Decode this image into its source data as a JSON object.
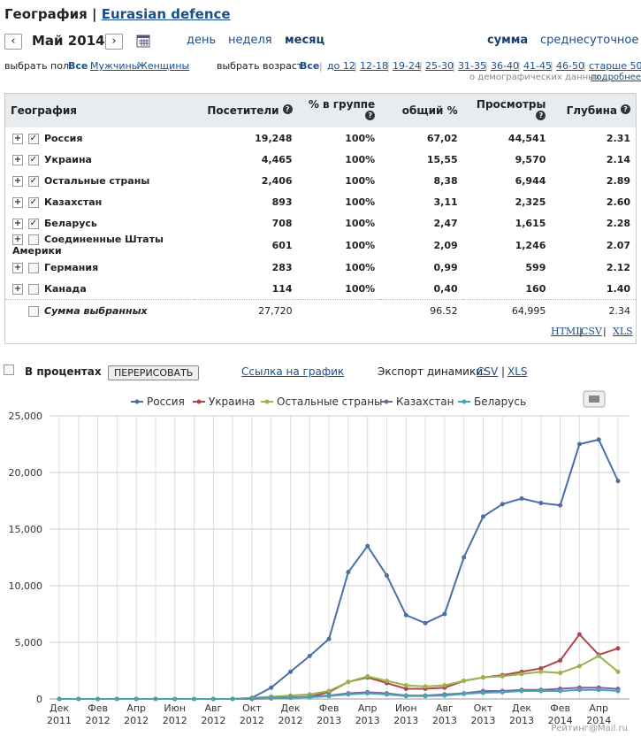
{
  "header": {
    "title": "География",
    "link": "Eurasian defence"
  },
  "nav": {
    "prev": "‹",
    "month": "Май 2014",
    "next": "›",
    "periods": [
      "день",
      "неделя",
      "месяц"
    ],
    "modes": [
      "сумма",
      "среднесуточное"
    ]
  },
  "filters": {
    "gender_label": "выбрать пол:",
    "gender": [
      "Все",
      "Мужчины",
      "Женщины"
    ],
    "age_label": "выбрать возраст:",
    "age": [
      "Все",
      "до 12",
      "12-18",
      "19-24",
      "25-30",
      "31-35",
      "36-40",
      "41-45",
      "46-50",
      "старше 50"
    ],
    "note": "о демографических данных",
    "note_link": "подробнее"
  },
  "table": {
    "columns": [
      "География",
      "Посетители",
      "% в группе",
      "общий %",
      "Просмотры",
      "Глубина"
    ],
    "rows": [
      {
        "checked": true,
        "cells": [
          "Россия",
          "19,248",
          "100%",
          "67,02",
          "44,541",
          "2.31"
        ]
      },
      {
        "checked": true,
        "cells": [
          "Украина",
          "4,465",
          "100%",
          "15,55",
          "9,570",
          "2.14"
        ]
      },
      {
        "checked": true,
        "cells": [
          "Остальные страны",
          "2,406",
          "100%",
          "8,38",
          "6,944",
          "2.89"
        ]
      },
      {
        "checked": true,
        "cells": [
          "Казахстан",
          "893",
          "100%",
          "3,11",
          "2,325",
          "2.60"
        ]
      },
      {
        "checked": true,
        "cells": [
          "Беларусь",
          "708",
          "100%",
          "2,47",
          "1,615",
          "2.28"
        ]
      },
      {
        "checked": false,
        "cells": [
          "Соединенные Штаты Америки",
          "601",
          "100%",
          "2,09",
          "1,246",
          "2.07"
        ]
      },
      {
        "checked": false,
        "cells": [
          "Германия",
          "283",
          "100%",
          "0,99",
          "599",
          "2.12"
        ]
      },
      {
        "checked": false,
        "cells": [
          "Канада",
          "114",
          "100%",
          "0,40",
          "160",
          "1.40"
        ]
      }
    ],
    "total": {
      "cells": [
        "Сумма выбранных",
        "27,720",
        "",
        "96.52",
        "64,995",
        "2.34"
      ]
    },
    "exports": [
      "HTML",
      "CSV",
      "XLS"
    ]
  },
  "controls": {
    "percent": "В процентах",
    "redraw": "ПЕРЕРИСОВАТЬ",
    "link": "Ссылка на график",
    "export_label": "Экспорт динамики:",
    "exports": [
      "CSV",
      "XLS"
    ]
  },
  "chart_data": {
    "type": "line",
    "categories": [
      "Дек 2011",
      null,
      "Фев 2012",
      null,
      "Апр 2012",
      null,
      "Июн 2012",
      null,
      "Авг 2012",
      null,
      "Окт 2012",
      null,
      "Дек 2012",
      null,
      "Фев 2013",
      null,
      "Апр 2013",
      null,
      "Июн 2013",
      null,
      "Авг 2013",
      null,
      "Окт 2013",
      null,
      "Дек 2013",
      null,
      "Фев 2014",
      null,
      "Апр 2014",
      null
    ],
    "series": [
      {
        "name": "Россия",
        "color": "#4a6fa5",
        "values": [
          0,
          0,
          0,
          0,
          0,
          0,
          0,
          0,
          0,
          0,
          100,
          1000,
          2400,
          3800,
          5300,
          11200,
          13500,
          10900,
          7400,
          6700,
          7500,
          12500,
          16100,
          17200,
          17700,
          17300,
          17100,
          22500,
          22900,
          19248
        ]
      },
      {
        "name": "Украина",
        "color": "#b0464a",
        "values": [
          0,
          0,
          0,
          0,
          0,
          0,
          0,
          0,
          0,
          0,
          0,
          50,
          100,
          200,
          600,
          1500,
          1900,
          1400,
          900,
          900,
          1000,
          1600,
          1900,
          2100,
          2400,
          2700,
          3400,
          5700,
          3900,
          4465
        ]
      },
      {
        "name": "Остальные страны",
        "color": "#9ab34c",
        "values": [
          0,
          0,
          0,
          0,
          0,
          0,
          0,
          0,
          0,
          0,
          100,
          200,
          300,
          400,
          700,
          1500,
          2000,
          1600,
          1200,
          1100,
          1200,
          1600,
          1900,
          2000,
          2200,
          2400,
          2300,
          2900,
          3800,
          2406
        ]
      },
      {
        "name": "Казахстан",
        "color": "#7f62a3",
        "values": [
          0,
          0,
          0,
          0,
          0,
          0,
          0,
          0,
          0,
          0,
          50,
          100,
          150,
          200,
          300,
          500,
          600,
          500,
          300,
          300,
          400,
          500,
          700,
          700,
          800,
          800,
          900,
          1000,
          1000,
          893
        ]
      },
      {
        "name": "Беларусь",
        "color": "#4aa2b5",
        "values": [
          0,
          0,
          0,
          0,
          0,
          0,
          0,
          0,
          0,
          0,
          30,
          80,
          120,
          150,
          250,
          400,
          500,
          400,
          250,
          250,
          300,
          450,
          550,
          600,
          700,
          700,
          700,
          800,
          800,
          708
        ]
      }
    ],
    "ylim": [
      0,
      25000
    ],
    "yticks": [
      0,
      {
        "value": 5000,
        "label": "5,000"
      },
      {
        "value": 10000,
        "label": "10,000"
      },
      {
        "value": 15000,
        "label": "15,000"
      },
      {
        "value": 20000,
        "label": "20,000"
      },
      {
        "value": 25000,
        "label": "25,000"
      }
    ],
    "grid": true,
    "watermark": "Рейтинг@Mail.ru"
  }
}
